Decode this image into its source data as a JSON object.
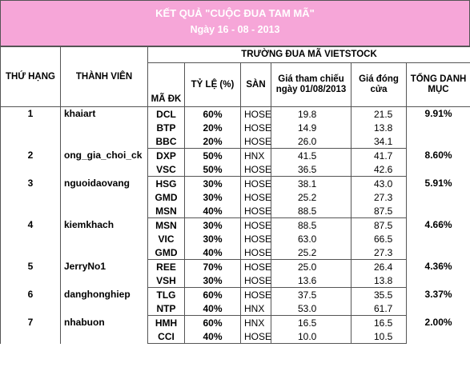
{
  "title": {
    "line1": "KẾT QUẢ \"CUỘC ĐUA TAM MÃ\"",
    "line2": "Ngày 16 - 08 - 2013"
  },
  "headers": {
    "rank": "THỨ HẠNG",
    "member": "THÀNH VIÊN",
    "race": "TRƯỜNG ĐUA MÃ VIETSTOCK",
    "code": "MÃ ĐK",
    "ratio": "TỶ LỆ (%)",
    "exchange": "SÀN",
    "ref_price": "Giá tham chiếu ngày 01/08/2013",
    "close_price": "Giá đóng cửa",
    "total": "TỔNG DANH MỤC"
  },
  "entries": [
    {
      "rank": "1",
      "member": "khaiart",
      "total": "9.91%",
      "stocks": [
        {
          "code": "DCL",
          "ratio": "60%",
          "exchange": "HOSE",
          "ref": "19.8",
          "close": "21.5"
        },
        {
          "code": "BTP",
          "ratio": "20%",
          "exchange": "HOSE",
          "ref": "14.9",
          "close": "13.8"
        },
        {
          "code": "BBC",
          "ratio": "20%",
          "exchange": "HOSE",
          "ref": "26.0",
          "close": "34.1"
        }
      ]
    },
    {
      "rank": "2",
      "member": "ong_gia_choi_ck",
      "total": "8.60%",
      "stocks": [
        {
          "code": "DXP",
          "ratio": "50%",
          "exchange": "HNX",
          "ref": "41.5",
          "close": "41.7"
        },
        {
          "code": "VSC",
          "ratio": "50%",
          "exchange": "HOSE",
          "ref": "36.5",
          "close": "42.6"
        }
      ]
    },
    {
      "rank": "3",
      "member": "nguoidaovang",
      "total": "5.91%",
      "stocks": [
        {
          "code": "HSG",
          "ratio": "30%",
          "exchange": "HOSE",
          "ref": "38.1",
          "close": "43.0"
        },
        {
          "code": "GMD",
          "ratio": "30%",
          "exchange": "HOSE",
          "ref": "25.2",
          "close": "27.3"
        },
        {
          "code": "MSN",
          "ratio": "40%",
          "exchange": "HOSE",
          "ref": "88.5",
          "close": "87.5"
        }
      ]
    },
    {
      "rank": "4",
      "member": "kiemkhach",
      "total": "4.66%",
      "stocks": [
        {
          "code": "MSN",
          "ratio": "30%",
          "exchange": "HOSE",
          "ref": "88.5",
          "close": "87.5"
        },
        {
          "code": "VIC",
          "ratio": "30%",
          "exchange": "HOSE",
          "ref": "63.0",
          "close": "66.5"
        },
        {
          "code": "GMD",
          "ratio": "40%",
          "exchange": "HOSE",
          "ref": "25.2",
          "close": "27.3"
        }
      ]
    },
    {
      "rank": "5",
      "member": "JerryNo1",
      "total": "4.36%",
      "stocks": [
        {
          "code": "REE",
          "ratio": "70%",
          "exchange": "HOSE",
          "ref": "25.0",
          "close": "26.4"
        },
        {
          "code": "VSH",
          "ratio": "30%",
          "exchange": "HOSE",
          "ref": "13.6",
          "close": "13.8"
        }
      ]
    },
    {
      "rank": "6",
      "member": "danghonghiep",
      "total": "3.37%",
      "stocks": [
        {
          "code": "TLG",
          "ratio": "60%",
          "exchange": "HOSE",
          "ref": "37.5",
          "close": "35.5"
        },
        {
          "code": "NTP",
          "ratio": "40%",
          "exchange": "HNX",
          "ref": "53.0",
          "close": "61.7"
        }
      ]
    },
    {
      "rank": "7",
      "member": "nhabuon",
      "total": "2.00%",
      "stocks": [
        {
          "code": "HMH",
          "ratio": "60%",
          "exchange": "HNX",
          "ref": "16.5",
          "close": "16.5"
        },
        {
          "code": "CCI",
          "ratio": "40%",
          "exchange": "HOSE",
          "ref": "10.0",
          "close": "10.5"
        }
      ]
    }
  ]
}
